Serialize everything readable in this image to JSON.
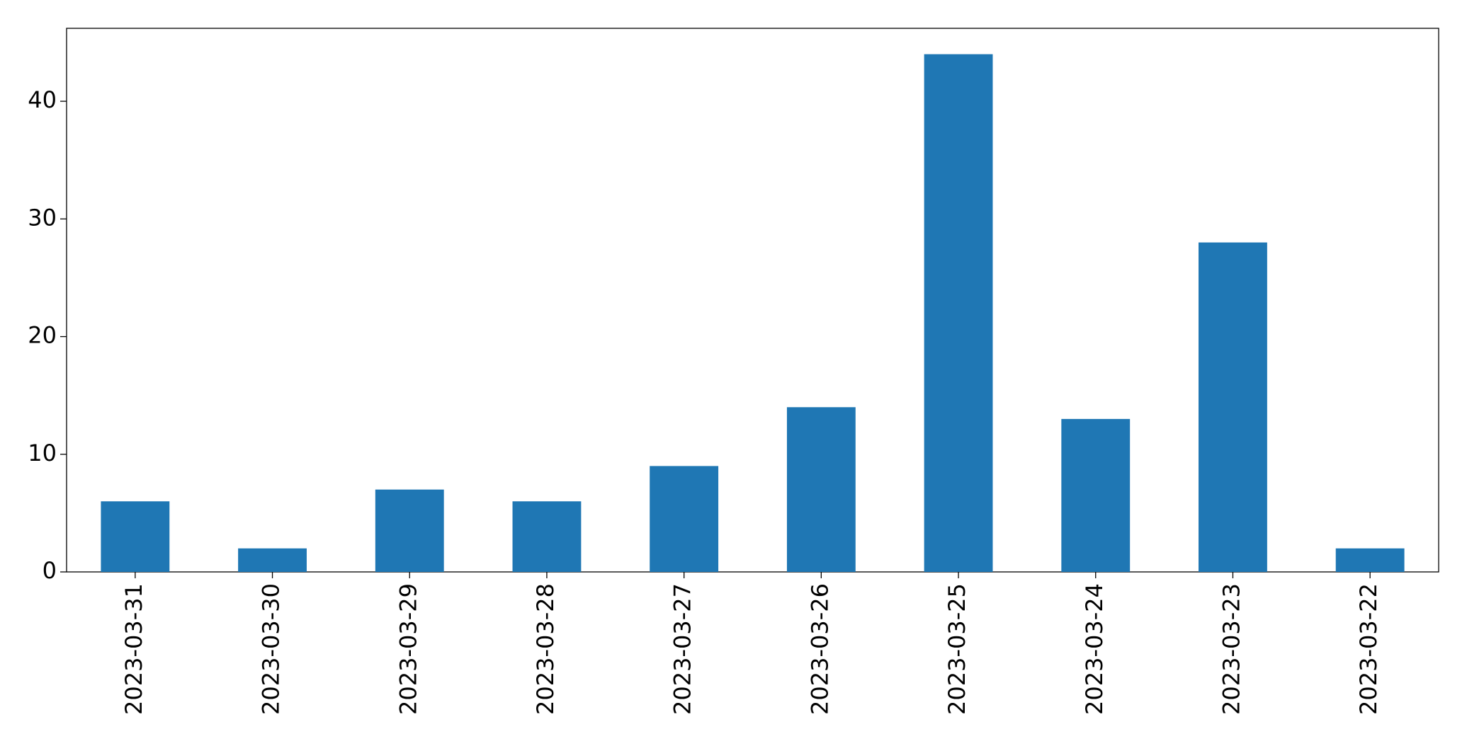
{
  "chart_data": {
    "type": "bar",
    "categories": [
      "2023-03-31",
      "2023-03-30",
      "2023-03-29",
      "2023-03-28",
      "2023-03-27",
      "2023-03-26",
      "2023-03-25",
      "2023-03-24",
      "2023-03-23",
      "2023-03-22"
    ],
    "values": [
      6,
      2,
      7,
      6,
      9,
      14,
      44,
      13,
      28,
      2
    ],
    "color": "#1f77b4",
    "ylim": [
      0,
      46.2
    ],
    "yticks": [
      0,
      10,
      20,
      30,
      40
    ],
    "grid": false
  }
}
